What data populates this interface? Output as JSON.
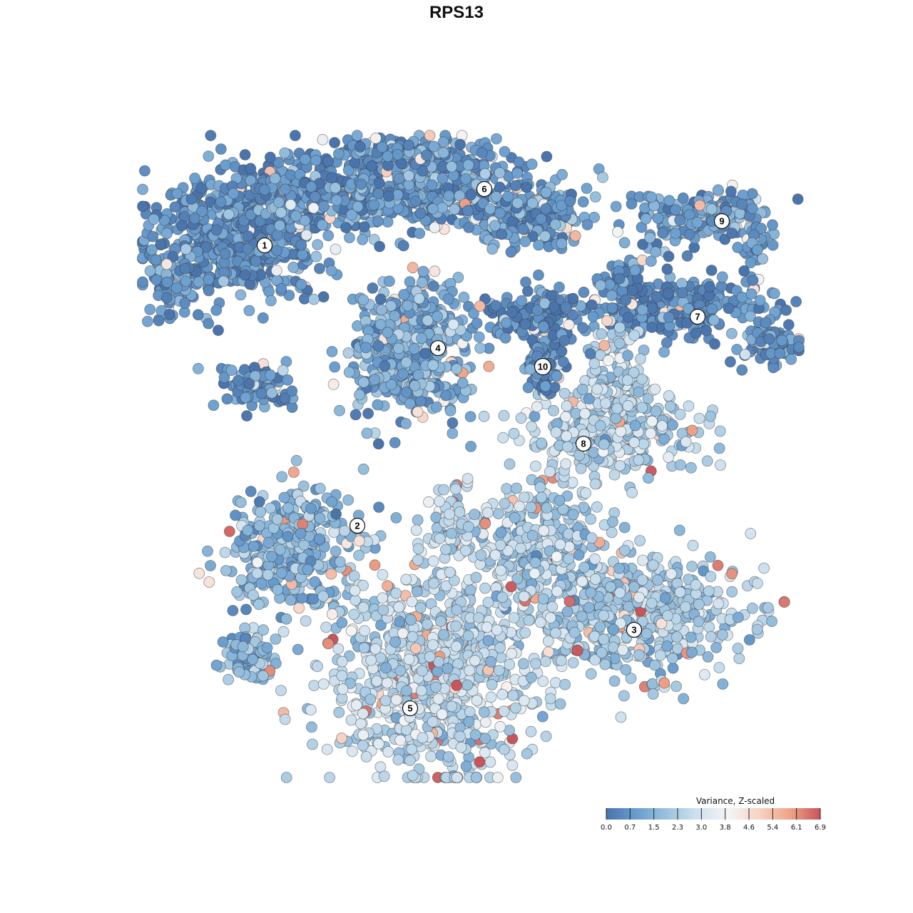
{
  "chart_data": {
    "type": "scatter",
    "title": "RPS13",
    "legend": {
      "title": "Variance, Z-scaled",
      "ticks": [
        "0.0",
        "0.7",
        "1.5",
        "2.3",
        "3.0",
        "3.8",
        "4.6",
        "5.4",
        "6.1",
        "6.9"
      ],
      "range": [
        0,
        6.9
      ],
      "placement": "bottom-right",
      "colors": [
        "#4a74ac",
        "#6a9ecf",
        "#9cc3df",
        "#d0e2ef",
        "#f4f4f4",
        "#f7d3c4",
        "#eea488",
        "#c9545c"
      ]
    },
    "clusters": [
      {
        "label": "1",
        "value": 0.7
      },
      {
        "label": "2",
        "value": 1.6
      },
      {
        "label": "3",
        "value": 2.2
      },
      {
        "label": "4",
        "value": 1.3
      },
      {
        "label": "5",
        "value": 2.6
      },
      {
        "label": "6",
        "value": 0.9
      },
      {
        "label": "7",
        "value": 0.6
      },
      {
        "label": "8",
        "value": 2.4
      },
      {
        "label": "9",
        "value": 1.0
      },
      {
        "label": "10",
        "value": 0.4
      }
    ]
  }
}
